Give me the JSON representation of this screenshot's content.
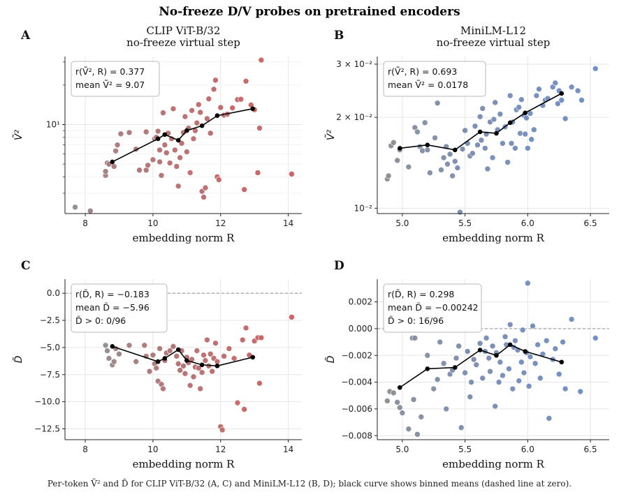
{
  "figure": {
    "title": "No-freeze D/V probes on pretrained encoders",
    "caption": "Per-token Ṽ² and D̃ for CLIP ViT-B/32 (A, C) and MiniLM-L12 (B, D); black curve shows binned means (dashed line at zero)."
  },
  "colors": {
    "clip_near": "#8c8c8c",
    "clip_far": "#cd5c5c",
    "minilm_near": "#8c8c8c",
    "minilm_far": "#6a8bc6",
    "binned_line": "#000000",
    "zero_line": "#999999"
  },
  "chart_data": [
    {
      "panel": "A",
      "type": "scatter",
      "title": "CLIP ViT-B/32\nno-freeze virtual step",
      "xlabel": "embedding norm R",
      "ylabel": "Ṽ²",
      "yscale": "log",
      "xlim": [
        7.4,
        14.4
      ],
      "ylim": [
        2.1,
        33
      ],
      "xticks": [
        8,
        10,
        12,
        14
      ],
      "yticks": [
        {
          "v": 10,
          "label": "10¹"
        }
      ],
      "annotation": [
        "r(Ṽ², R) = 0.377",
        "mean Ṽ² = 9.07"
      ],
      "points": [
        [
          7.7,
          2.35
        ],
        [
          8.15,
          2.2
        ],
        [
          8.6,
          4.1
        ],
        [
          8.6,
          4.4
        ],
        [
          8.65,
          5.1
        ],
        [
          8.7,
          5.0
        ],
        [
          8.85,
          4.8
        ],
        [
          8.9,
          6.3
        ],
        [
          8.95,
          7.0
        ],
        [
          9.05,
          8.5
        ],
        [
          9.3,
          8.7
        ],
        [
          9.5,
          6.5
        ],
        [
          9.6,
          4.5
        ],
        [
          9.8,
          4.5
        ],
        [
          9.8,
          8.8
        ],
        [
          9.85,
          4.9
        ],
        [
          10.0,
          5.4
        ],
        [
          10.05,
          7.8
        ],
        [
          10.1,
          8.0
        ],
        [
          10.15,
          8.9
        ],
        [
          10.2,
          5.2
        ],
        [
          10.2,
          6.4
        ],
        [
          10.25,
          4.1
        ],
        [
          10.3,
          12.3
        ],
        [
          10.35,
          7.0
        ],
        [
          10.4,
          6.1
        ],
        [
          10.45,
          8.6
        ],
        [
          10.5,
          5.1
        ],
        [
          10.55,
          7.8
        ],
        [
          10.6,
          13.2
        ],
        [
          10.65,
          6.4
        ],
        [
          10.7,
          4.8
        ],
        [
          10.75,
          3.4
        ],
        [
          10.8,
          5.6
        ],
        [
          10.85,
          7.2
        ],
        [
          10.9,
          8.7
        ],
        [
          10.95,
          11.5
        ],
        [
          11.0,
          6.2
        ],
        [
          11.05,
          9.4
        ],
        [
          11.1,
          4.3
        ],
        [
          11.15,
          12.8
        ],
        [
          11.2,
          7.8
        ],
        [
          11.25,
          9.0
        ],
        [
          11.3,
          10.3
        ],
        [
          11.35,
          14.2
        ],
        [
          11.4,
          12.4
        ],
        [
          11.45,
          3.1
        ],
        [
          11.5,
          2.8
        ],
        [
          11.55,
          3.3
        ],
        [
          11.6,
          11.1
        ],
        [
          11.65,
          15.7
        ],
        [
          11.7,
          8.6
        ],
        [
          11.8,
          18.6
        ],
        [
          11.85,
          21.8
        ],
        [
          11.9,
          4.0
        ],
        [
          11.95,
          3.8
        ],
        [
          12.0,
          13.5
        ],
        [
          12.1,
          11.8
        ],
        [
          12.2,
          12.0
        ],
        [
          12.35,
          13.4
        ],
        [
          12.5,
          15.5
        ],
        [
          12.6,
          15.6
        ],
        [
          12.7,
          3.2
        ],
        [
          12.75,
          21.4
        ],
        [
          12.9,
          14.1
        ],
        [
          13.0,
          13.0
        ],
        [
          13.1,
          4.3
        ],
        [
          13.15,
          9.4
        ],
        [
          13.2,
          31.0
        ],
        [
          14.1,
          4.2
        ]
      ],
      "binned": {
        "x": [
          8.8,
          10.15,
          10.35,
          10.75,
          11.0,
          11.45,
          11.9,
          12.95
        ],
        "y": [
          5.2,
          7.8,
          8.4,
          7.6,
          9.0,
          9.8,
          11.7,
          13.2
        ]
      }
    },
    {
      "panel": "B",
      "type": "scatter",
      "title": "MiniLM-L12\nno-freeze virtual step",
      "xlabel": "embedding norm R",
      "ylabel": "Ṽ²",
      "yscale": "log",
      "xlim": [
        4.8,
        6.65
      ],
      "ylim": [
        0.0096,
        0.0318
      ],
      "xticks": [
        5.0,
        5.5,
        6.0,
        6.5
      ],
      "yticks": [
        {
          "v": 0.01,
          "label": "10⁻²"
        },
        {
          "v": 0.02,
          "label": "2 × 10⁻²"
        },
        {
          "v": 0.03,
          "label": "3 × 10⁻²"
        }
      ],
      "annotation": [
        "r(Ṽ², R) = 0.693",
        "mean Ṽ² = 0.0178"
      ],
      "points": [
        [
          4.88,
          0.0125
        ],
        [
          4.89,
          0.0128
        ],
        [
          4.91,
          0.0161
        ],
        [
          4.93,
          0.0165
        ],
        [
          4.96,
          0.0144
        ],
        [
          4.98,
          0.0156
        ],
        [
          5.05,
          0.0137
        ],
        [
          5.1,
          0.0185
        ],
        [
          5.12,
          0.0179
        ],
        [
          5.14,
          0.016
        ],
        [
          5.16,
          0.0155
        ],
        [
          5.18,
          0.0192
        ],
        [
          5.2,
          0.0156
        ],
        [
          5.22,
          0.0131
        ],
        [
          5.26,
          0.0171
        ],
        [
          5.28,
          0.0223
        ],
        [
          5.31,
          0.0134
        ],
        [
          5.33,
          0.0147
        ],
        [
          5.35,
          0.016
        ],
        [
          5.36,
          0.014
        ],
        [
          5.38,
          0.0151
        ],
        [
          5.4,
          0.0128
        ],
        [
          5.42,
          0.0143
        ],
        [
          5.44,
          0.0136
        ],
        [
          5.46,
          0.0097
        ],
        [
          5.48,
          0.0157
        ],
        [
          5.5,
          0.0181
        ],
        [
          5.52,
          0.0164
        ],
        [
          5.54,
          0.0149
        ],
        [
          5.56,
          0.0152
        ],
        [
          5.58,
          0.0187
        ],
        [
          5.6,
          0.0162
        ],
        [
          5.62,
          0.0201
        ],
        [
          5.63,
          0.0168
        ],
        [
          5.64,
          0.0214
        ],
        [
          5.66,
          0.0158
        ],
        [
          5.67,
          0.0176
        ],
        [
          5.68,
          0.0135
        ],
        [
          5.7,
          0.0193
        ],
        [
          5.72,
          0.0147
        ],
        [
          5.73,
          0.0197
        ],
        [
          5.74,
          0.0224
        ],
        [
          5.76,
          0.0182
        ],
        [
          5.78,
          0.0205
        ],
        [
          5.8,
          0.0164
        ],
        [
          5.82,
          0.0186
        ],
        [
          5.84,
          0.0142
        ],
        [
          5.86,
          0.0236
        ],
        [
          5.87,
          0.0164
        ],
        [
          5.88,
          0.0193
        ],
        [
          5.9,
          0.0158
        ],
        [
          5.91,
          0.0212
        ],
        [
          5.93,
          0.0216
        ],
        [
          5.94,
          0.0177
        ],
        [
          5.95,
          0.0229
        ],
        [
          5.97,
          0.0203
        ],
        [
          5.98,
          0.0176
        ],
        [
          5.99,
          0.0199
        ],
        [
          6.0,
          0.0158
        ],
        [
          6.02,
          0.0206
        ],
        [
          6.03,
          0.0169
        ],
        [
          6.05,
          0.0182
        ],
        [
          6.07,
          0.0236
        ],
        [
          6.09,
          0.0248
        ],
        [
          6.12,
          0.0219
        ],
        [
          6.14,
          0.0228
        ],
        [
          6.16,
          0.0231
        ],
        [
          6.2,
          0.0252
        ],
        [
          6.22,
          0.026
        ],
        [
          6.24,
          0.0222
        ],
        [
          6.25,
          0.0245
        ],
        [
          6.27,
          0.0228
        ],
        [
          6.3,
          0.0198
        ],
        [
          6.35,
          0.0252
        ],
        [
          6.4,
          0.0245
        ],
        [
          6.43,
          0.0228
        ],
        [
          6.54,
          0.029
        ]
      ],
      "binned": {
        "x": [
          4.98,
          5.2,
          5.42,
          5.62,
          5.75,
          5.86,
          5.98,
          6.27
        ],
        "y": [
          0.0158,
          0.0162,
          0.0156,
          0.0179,
          0.0177,
          0.0192,
          0.0207,
          0.024
        ]
      }
    },
    {
      "panel": "C",
      "type": "scatter",
      "title": "",
      "xlabel": "embedding norm R",
      "ylabel": "D̃",
      "yscale": "linear",
      "xlim": [
        7.4,
        14.4
      ],
      "ylim": [
        -13.5,
        1.3
      ],
      "xticks": [
        8,
        10,
        12,
        14
      ],
      "yticks": [
        {
          "v": 0,
          "label": "0.0"
        },
        {
          "v": -2.5,
          "label": "−2.5"
        },
        {
          "v": -5,
          "label": "−5.0"
        },
        {
          "v": -7.5,
          "label": "−7.5"
        },
        {
          "v": -10,
          "label": "−10.0"
        },
        {
          "v": -12.5,
          "label": "−12.5"
        }
      ],
      "hline": 0,
      "annotation": [
        "r(D̃, R) = −0.183",
        "mean D̃ = −5.96",
        "D̃ > 0: 0/96"
      ],
      "points": [
        [
          8.6,
          -4.8
        ],
        [
          8.65,
          -5.3
        ],
        [
          8.7,
          -6.0
        ],
        [
          8.8,
          -6.6
        ],
        [
          8.85,
          -6.3
        ],
        [
          8.9,
          -5.1
        ],
        [
          9.0,
          -5.6
        ],
        [
          9.3,
          -4.8
        ],
        [
          9.5,
          -6.3
        ],
        [
          9.75,
          -4.8
        ],
        [
          9.8,
          -5.8
        ],
        [
          9.9,
          -7.2
        ],
        [
          10.0,
          -5.7
        ],
        [
          10.05,
          -6.5
        ],
        [
          10.1,
          -6.9
        ],
        [
          10.15,
          -8.1
        ],
        [
          10.2,
          -5.1
        ],
        [
          10.25,
          -8.4
        ],
        [
          10.3,
          -8.8
        ],
        [
          10.35,
          -6.2
        ],
        [
          10.4,
          -5.5
        ],
        [
          10.5,
          -5.3
        ],
        [
          10.6,
          -4.9
        ],
        [
          10.7,
          -5.8
        ],
        [
          10.75,
          -6.5
        ],
        [
          10.8,
          -7.1
        ],
        [
          10.85,
          -5.3
        ],
        [
          10.9,
          -6.7
        ],
        [
          10.95,
          -7.4
        ],
        [
          11.0,
          -5.9
        ],
        [
          11.05,
          -6.4
        ],
        [
          11.1,
          -8.5
        ],
        [
          11.15,
          -6.1
        ],
        [
          11.2,
          -7.7
        ],
        [
          11.25,
          -6.8
        ],
        [
          11.3,
          -5.3
        ],
        [
          11.35,
          -6.9
        ],
        [
          11.4,
          -8.8
        ],
        [
          11.45,
          -7.3
        ],
        [
          11.5,
          -5.7
        ],
        [
          11.55,
          -6.2
        ],
        [
          11.6,
          -4.3
        ],
        [
          11.65,
          -6.7
        ],
        [
          11.7,
          -5.6
        ],
        [
          11.75,
          -7.2
        ],
        [
          11.8,
          -6.0
        ],
        [
          11.85,
          -4.6
        ],
        [
          11.9,
          -6.3
        ],
        [
          12.0,
          -12.3
        ],
        [
          12.05,
          -12.6
        ],
        [
          12.1,
          -5.8
        ],
        [
          12.25,
          -5.1
        ],
        [
          12.4,
          -6.0
        ],
        [
          12.5,
          -10.1
        ],
        [
          12.65,
          -4.3
        ],
        [
          12.7,
          -10.7
        ],
        [
          12.75,
          -3.2
        ],
        [
          12.85,
          -5.7
        ],
        [
          13.0,
          -4.4
        ],
        [
          13.1,
          -4.1
        ],
        [
          13.15,
          -8.3
        ],
        [
          13.2,
          -4.1
        ],
        [
          14.1,
          -2.2
        ]
      ],
      "binned": {
        "x": [
          8.8,
          10.15,
          10.35,
          10.75,
          11.0,
          11.45,
          11.9,
          12.95
        ],
        "y": [
          -4.9,
          -6.3,
          -6.0,
          -5.2,
          -6.2,
          -6.6,
          -6.7,
          -5.9
        ]
      }
    },
    {
      "panel": "D",
      "type": "scatter",
      "title": "",
      "xlabel": "embedding norm R",
      "ylabel": "D̃",
      "yscale": "linear",
      "xlim": [
        4.8,
        6.65
      ],
      "ylim": [
        -0.0083,
        0.0037
      ],
      "xticks": [
        5.0,
        5.5,
        6.0,
        6.5
      ],
      "yticks": [
        {
          "v": 0.002,
          "label": "0.002"
        },
        {
          "v": 0,
          "label": "0.000"
        },
        {
          "v": -0.002,
          "label": "−0.002"
        },
        {
          "v": -0.004,
          "label": "−0.004"
        },
        {
          "v": -0.006,
          "label": "−0.006"
        },
        {
          "v": -0.008,
          "label": "−0.008"
        }
      ],
      "hline": 0,
      "annotation": [
        "r(D̃, R) = 0.298",
        "mean D̃ = −0.00242",
        "D̃ > 0: 16/96"
      ],
      "points": [
        [
          4.88,
          -0.0054
        ],
        [
          4.9,
          -0.0047
        ],
        [
          4.93,
          -0.0048
        ],
        [
          4.96,
          -0.0055
        ],
        [
          4.98,
          -0.0059
        ],
        [
          5.0,
          -0.0063
        ],
        [
          5.05,
          -0.0075
        ],
        [
          5.08,
          -0.0007
        ],
        [
          5.09,
          -0.0053
        ],
        [
          5.1,
          -0.0007
        ],
        [
          5.12,
          -0.0079
        ],
        [
          5.15,
          -0.0066
        ],
        [
          5.2,
          -0.002
        ],
        [
          5.25,
          -0.0045
        ],
        [
          5.28,
          -0.0038
        ],
        [
          5.3,
          -0.001
        ],
        [
          5.33,
          -0.0026
        ],
        [
          5.35,
          -0.006
        ],
        [
          5.38,
          -0.0034
        ],
        [
          5.4,
          -0.0031
        ],
        [
          5.43,
          -0.0022
        ],
        [
          5.45,
          -0.0013
        ],
        [
          5.47,
          -0.0074
        ],
        [
          5.5,
          -0.0033
        ],
        [
          5.52,
          -0.0017
        ],
        [
          5.54,
          -0.0051
        ],
        [
          5.55,
          -0.004
        ],
        [
          5.57,
          -0.0023
        ],
        [
          5.59,
          -0.0027
        ],
        [
          5.61,
          0.0025
        ],
        [
          5.62,
          -0.0011
        ],
        [
          5.64,
          -0.0037
        ],
        [
          5.66,
          -0.0017
        ],
        [
          5.67,
          -0.0007
        ],
        [
          5.69,
          -0.0022
        ],
        [
          5.7,
          -0.0032
        ],
        [
          5.72,
          -0.0013
        ],
        [
          5.74,
          -0.0058
        ],
        [
          5.75,
          -0.0018
        ],
        [
          5.77,
          -0.004
        ],
        [
          5.78,
          -0.0025
        ],
        [
          5.8,
          -0.0035
        ],
        [
          5.82,
          -0.0006
        ],
        [
          5.83,
          -0.0012
        ],
        [
          5.85,
          -0.003
        ],
        [
          5.86,
          0.0003
        ],
        [
          5.88,
          -0.0045
        ],
        [
          5.89,
          -0.0014
        ],
        [
          5.9,
          -0.0009
        ],
        [
          5.92,
          -0.0016
        ],
        [
          5.93,
          -0.0039
        ],
        [
          5.95,
          -0.0025
        ],
        [
          5.96,
          -0.0001
        ],
        [
          5.97,
          -0.0033
        ],
        [
          5.99,
          -0.0018
        ],
        [
          6.0,
          0.0034
        ],
        [
          6.01,
          -0.0043
        ],
        [
          6.02,
          -0.0021
        ],
        [
          6.04,
          0.0002
        ],
        [
          6.06,
          -0.0026
        ],
        [
          6.08,
          -0.0012
        ],
        [
          6.1,
          -0.0037
        ],
        [
          6.12,
          -0.0019
        ],
        [
          6.15,
          -0.0009
        ],
        [
          6.17,
          -0.0067
        ],
        [
          6.2,
          -0.0023
        ],
        [
          6.22,
          -0.0015
        ],
        [
          6.25,
          -0.0034
        ],
        [
          6.28,
          -0.001
        ],
        [
          6.3,
          -0.0045
        ],
        [
          6.35,
          0.0007
        ],
        [
          6.42,
          -0.0047
        ],
        [
          6.54,
          -0.0007
        ]
      ],
      "binned": {
        "x": [
          4.98,
          5.2,
          5.42,
          5.62,
          5.75,
          5.86,
          5.98,
          6.27
        ],
        "y": [
          -0.0044,
          -0.003,
          -0.0029,
          -0.0016,
          -0.002,
          -0.0012,
          -0.0017,
          -0.0025
        ]
      }
    }
  ]
}
